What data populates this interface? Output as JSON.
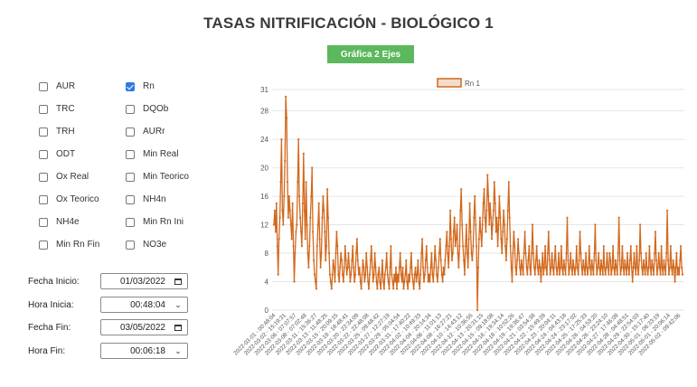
{
  "title": "TASAS NITRIFICACIÓN - BIOLÓGICO 1",
  "button_label": "Gráfica 2 Ejes",
  "checkboxes": [
    {
      "label": "AUR",
      "checked": false
    },
    {
      "label": "Rn",
      "checked": true
    },
    {
      "label": "TRC",
      "checked": false
    },
    {
      "label": "DQOb",
      "checked": false
    },
    {
      "label": "TRH",
      "checked": false
    },
    {
      "label": "AURr",
      "checked": false
    },
    {
      "label": "ODT",
      "checked": false
    },
    {
      "label": "Min Real",
      "checked": false
    },
    {
      "label": "Ox Real",
      "checked": false
    },
    {
      "label": "Min Teorico",
      "checked": false
    },
    {
      "label": "Ox Teorico",
      "checked": false
    },
    {
      "label": "NH4n",
      "checked": false
    },
    {
      "label": "NH4e",
      "checked": false
    },
    {
      "label": "Min Rn Ini",
      "checked": false
    },
    {
      "label": "Min Rn Fin",
      "checked": false
    },
    {
      "label": "NO3e",
      "checked": false
    }
  ],
  "fields": {
    "fecha_inicio": {
      "label": "Fecha Inicio:",
      "value": "01/03/2022",
      "icon": "calendar-icon"
    },
    "hora_inicio": {
      "label": "Hora Inicia:",
      "value": "00:48:04",
      "icon": "chevron-down-icon"
    },
    "fecha_fin": {
      "label": "Fecha Fin:",
      "value": "03/05/2022",
      "icon": "calendar-icon"
    },
    "hora_fin": {
      "label": "Hora Fin:",
      "value": "00:06:18",
      "icon": "chevron-down-icon"
    }
  },
  "colors": {
    "line": "#d2691e",
    "legend_fill": "#f3dccb",
    "button": "#5cb85c",
    "checkbox_checked": "#2d7be5",
    "grid": "#e6e6e6"
  },
  "chart_data": {
    "type": "line",
    "legend": [
      "Rn 1"
    ],
    "ylim": [
      0,
      31
    ],
    "yticks": [
      0,
      4,
      8,
      12,
      16,
      20,
      24,
      28,
      31
    ],
    "grid": true,
    "legend_position": "top",
    "x_tick_labels": [
      "2022-03-01 - 00:48:04",
      "2022-03-02 - 15:19:31",
      "2022-03-06 - 07:07:57",
      "2022-03-08 - 07:02:48",
      "2022-03-11 - 15:36:27",
      "2022-03-13 - 11:48:25",
      "2022-03-15 - 20:09:15",
      "2022-03-18 - 18:48:41",
      "2022-03-20 - 22:34:09",
      "2022-03-22 - 22:48:08",
      "2022-03-25 - 09:48:42",
      "2022-03-27 - 12:27:19",
      "2022-03-29 - 05:04:54",
      "2022-03-31 - 17:40:22",
      "2022-04-02 - 10:49:33",
      "2022-04-04 - 20:14:34",
      "2022-04-06 - 11:01:13",
      "2022-04-08 - 16:27:21",
      "2022-04-10 - 14:43:12",
      "2022-04-12 - 10:36:55",
      "2022-04-13 - 20:31:15",
      "2022-04-15 - 09:18:08",
      "2022-04-16 - 19:34:14",
      "2022-04-18 - 10:52:26",
      "2022-04-19 - 19:36:47",
      "2022-04-21 - 03:54:38",
      "2022-04-22 - 15:49:28",
      "2022-04-23 - 20:04:11",
      "2022-04-24 - 04:43:18",
      "2022-04-24 - 23:17:02",
      "2022-04-25 - 17:25:33",
      "2022-04-26 - 04:53:20",
      "2022-04-26 - 23:24:10",
      "2022-04-27 - 17:46:08",
      "2022-04-28 - 04:48:51",
      "2022-04-29 - 22:54:03",
      "2022-04-30 - 15:17:40",
      "2022-05-01 - 06:33:19",
      "2022-05-01 - 20:06:14",
      "2022-05-02 - 09:42:06"
    ],
    "series": [
      {
        "name": "Rn 1",
        "values": [
          12,
          14,
          11,
          15,
          9,
          5,
          10,
          13,
          18,
          24,
          14,
          12,
          16,
          21,
          30,
          27,
          18,
          13,
          16,
          14,
          12,
          10,
          15,
          9,
          4,
          8,
          11,
          12,
          18,
          24,
          16,
          13,
          11,
          9,
          15,
          22,
          14,
          10,
          18,
          12,
          8,
          6,
          9,
          13,
          16,
          20,
          11,
          7,
          5,
          4,
          3,
          9,
          12,
          15,
          10,
          6,
          8,
          13,
          16,
          14,
          11,
          7,
          9,
          17,
          13,
          8,
          5,
          4,
          3,
          5,
          7,
          6,
          4,
          8,
          11,
          9,
          5,
          4,
          6,
          8,
          7,
          5,
          4,
          6,
          9,
          7,
          5,
          6,
          8,
          6,
          4,
          5,
          7,
          9,
          6,
          4,
          5,
          8,
          10,
          7,
          5,
          6,
          4,
          3,
          5,
          7,
          6,
          4,
          5,
          8,
          6,
          4,
          3,
          5,
          7,
          9,
          6,
          4,
          5,
          8,
          6,
          4,
          3,
          5,
          6,
          4,
          3,
          5,
          7,
          4,
          3,
          5,
          6,
          8,
          5,
          4,
          3,
          6,
          9,
          5,
          4,
          3,
          5,
          4,
          6,
          3,
          5,
          4,
          6,
          8,
          5,
          4,
          6,
          3,
          4,
          5,
          7,
          4,
          3,
          5,
          4,
          6,
          8,
          5,
          4,
          3,
          5,
          6,
          4,
          5,
          7,
          4,
          3,
          5,
          8,
          10,
          6,
          4,
          5,
          7,
          9,
          6,
          4,
          5,
          4,
          6,
          8,
          5,
          4,
          6,
          9,
          7,
          5,
          4,
          6,
          8,
          10,
          7,
          5,
          4,
          6,
          5,
          7,
          9,
          11,
          8,
          6,
          9,
          14,
          10,
          7,
          8,
          11,
          13,
          9,
          10,
          12,
          8,
          6,
          9,
          14,
          17,
          12,
          9,
          7,
          5,
          9,
          12,
          8,
          6,
          10,
          15,
          11,
          8,
          7,
          9,
          13,
          16,
          12,
          9,
          0,
          6,
          10,
          13,
          11,
          9,
          12,
          15,
          17,
          13,
          11,
          14,
          19,
          16,
          12,
          15,
          13,
          10,
          12,
          14,
          18,
          15,
          11,
          13,
          9,
          12,
          16,
          13,
          10,
          8,
          11,
          14,
          12,
          9,
          7,
          10,
          14,
          18,
          13,
          9,
          6,
          4,
          8,
          11,
          9,
          6,
          5,
          7,
          10,
          8,
          6,
          5,
          7,
          6,
          5,
          8,
          11,
          8,
          6,
          5,
          7,
          9,
          6,
          5,
          8,
          12,
          8,
          6,
          5,
          7,
          9,
          6,
          5,
          7,
          6,
          4,
          6,
          8,
          5,
          6,
          9,
          6,
          5,
          8,
          11,
          7,
          5,
          6,
          8,
          6,
          5,
          7,
          9,
          6,
          5,
          6,
          8,
          5,
          6,
          9,
          6,
          5,
          7,
          6,
          5,
          8,
          13,
          7,
          5,
          6,
          8,
          6,
          5,
          7,
          6,
          5,
          6,
          9,
          6,
          5,
          7,
          11,
          8,
          6,
          5,
          7,
          6,
          5,
          8,
          6,
          5,
          6,
          9,
          6,
          5,
          7,
          6,
          5,
          8,
          12,
          7,
          5,
          6,
          8,
          6,
          5,
          7,
          6,
          5,
          9,
          6,
          5,
          6,
          8,
          6,
          5,
          8,
          7,
          5,
          6,
          9,
          6,
          5,
          7,
          6,
          5,
          8,
          13,
          7,
          5,
          6,
          9,
          6,
          5,
          7,
          6,
          5,
          8,
          6,
          5,
          7,
          9,
          6,
          4,
          6,
          8,
          6,
          5,
          9,
          6,
          5,
          7,
          12,
          8,
          6,
          5,
          7,
          6,
          5,
          8,
          6,
          5,
          6,
          9,
          6,
          5,
          7,
          6,
          5,
          8,
          11,
          7,
          5,
          6,
          8,
          6,
          5,
          9,
          6,
          5,
          7,
          6,
          5,
          8,
          14,
          7,
          5,
          6,
          9,
          6,
          5,
          7,
          6,
          4,
          6,
          8,
          5,
          6,
          5,
          7,
          9,
          6,
          5
        ]
      }
    ]
  }
}
